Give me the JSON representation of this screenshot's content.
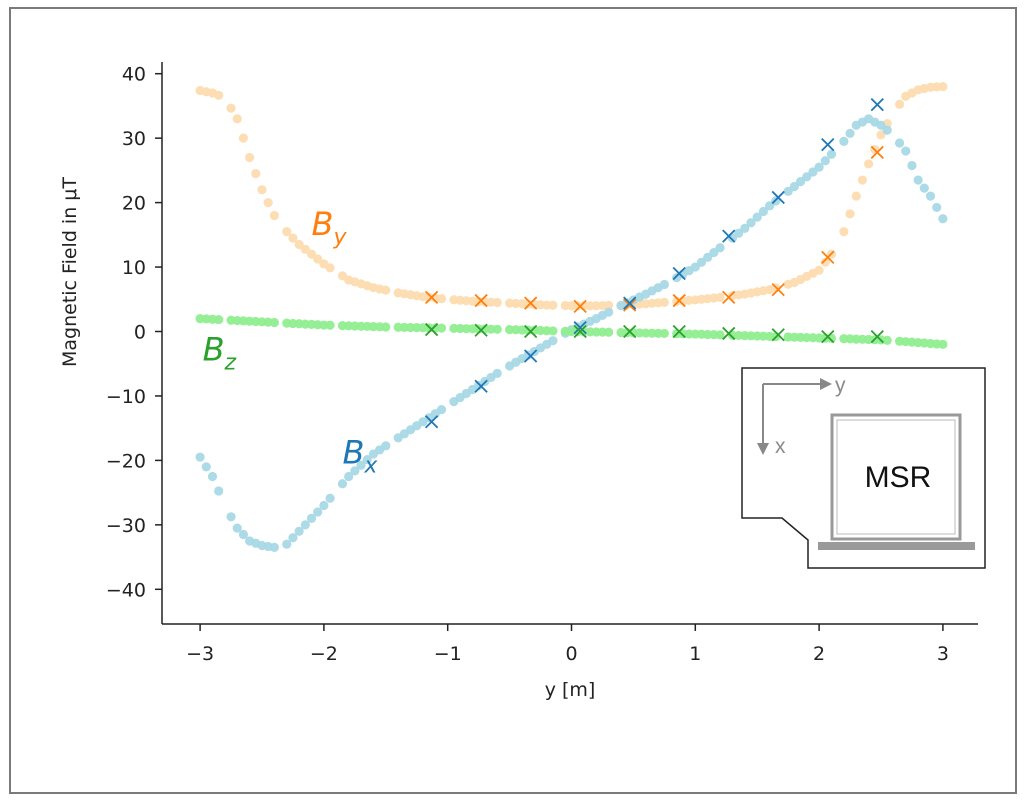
{
  "chart_data": {
    "type": "scatter",
    "title": "",
    "xlabel": "y [m]",
    "ylabel": "Magnetic Field in μT",
    "xlim": [
      -3.3,
      3.3
    ],
    "ylim": [
      -45,
      40
    ],
    "xticks": [
      -3,
      -2,
      -1,
      0,
      1,
      2,
      3
    ],
    "yticks": [
      40,
      30,
      20,
      10,
      0,
      -10,
      -20,
      -30,
      -40
    ],
    "xtick_labels": [
      "−3",
      "−2",
      "−1",
      "0",
      "1",
      "2",
      "3"
    ],
    "ytick_labels": [
      "40",
      "30",
      "20",
      "10",
      "0",
      "−10",
      "−20",
      "−30",
      "−40"
    ],
    "series": [
      {
        "name": "B_y",
        "label_main": "B",
        "label_sub": "y",
        "dot_color": "#fddcb0",
        "marker_color": "#ff7f0e",
        "curve": [
          [
            -3.0,
            37.4
          ],
          [
            -2.9,
            37.0
          ],
          [
            -2.8,
            36.3
          ],
          [
            -2.7,
            33.0
          ],
          [
            -2.6,
            27.0
          ],
          [
            -2.5,
            22.0
          ],
          [
            -2.4,
            18.0
          ],
          [
            -2.3,
            15.5
          ],
          [
            -2.2,
            13.5
          ],
          [
            -2.0,
            10.5
          ],
          [
            -1.8,
            8.0
          ],
          [
            -1.6,
            6.8
          ],
          [
            -1.4,
            6.0
          ],
          [
            -1.2,
            5.4
          ],
          [
            -1.0,
            5.0
          ],
          [
            -0.8,
            4.7
          ],
          [
            -0.6,
            4.5
          ],
          [
            -0.4,
            4.3
          ],
          [
            -0.2,
            4.1
          ],
          [
            0.0,
            4.0
          ],
          [
            0.2,
            4.0
          ],
          [
            0.4,
            4.1
          ],
          [
            0.6,
            4.3
          ],
          [
            0.8,
            4.6
          ],
          [
            1.0,
            4.9
          ],
          [
            1.2,
            5.3
          ],
          [
            1.4,
            5.8
          ],
          [
            1.6,
            6.5
          ],
          [
            1.8,
            7.6
          ],
          [
            2.0,
            9.5
          ],
          [
            2.1,
            12.0
          ],
          [
            2.2,
            15.5
          ],
          [
            2.3,
            21.0
          ],
          [
            2.4,
            26.0
          ],
          [
            2.5,
            30.5
          ],
          [
            2.6,
            34.0
          ],
          [
            2.7,
            36.5
          ],
          [
            2.8,
            37.5
          ],
          [
            2.9,
            37.9
          ],
          [
            3.0,
            38.0
          ]
        ],
        "markers": [
          [
            -1.13,
            5.3
          ],
          [
            -0.73,
            4.8
          ],
          [
            -0.33,
            4.4
          ],
          [
            0.07,
            3.9
          ],
          [
            0.47,
            4.1
          ],
          [
            0.87,
            4.8
          ],
          [
            1.27,
            5.3
          ],
          [
            1.67,
            6.5
          ],
          [
            2.07,
            11.5
          ],
          [
            2.47,
            27.8
          ]
        ],
        "label_pos": [
          -2.1,
          15.0
        ]
      },
      {
        "name": "B_x",
        "label_main": "B",
        "label_sub": "x",
        "dot_color": "#a8d8e6",
        "marker_color": "#1f77b4",
        "curve": [
          [
            -3.0,
            -19.5
          ],
          [
            -2.9,
            -22.5
          ],
          [
            -2.8,
            -27.0
          ],
          [
            -2.7,
            -30.5
          ],
          [
            -2.6,
            -32.5
          ],
          [
            -2.5,
            -33.2
          ],
          [
            -2.4,
            -33.5
          ],
          [
            -2.3,
            -33.0
          ],
          [
            -2.2,
            -31.0
          ],
          [
            -2.0,
            -27.0
          ],
          [
            -1.8,
            -22.5
          ],
          [
            -1.6,
            -19.0
          ],
          [
            -1.4,
            -16.5
          ],
          [
            -1.2,
            -14.0
          ],
          [
            -1.0,
            -11.5
          ],
          [
            -0.8,
            -9.0
          ],
          [
            -0.6,
            -6.5
          ],
          [
            -0.4,
            -4.2
          ],
          [
            -0.2,
            -2.0
          ],
          [
            0.0,
            0.3
          ],
          [
            0.2,
            2.0
          ],
          [
            0.4,
            4.0
          ],
          [
            0.6,
            5.8
          ],
          [
            0.8,
            7.8
          ],
          [
            1.0,
            10.0
          ],
          [
            1.2,
            13.0
          ],
          [
            1.4,
            16.0
          ],
          [
            1.6,
            19.5
          ],
          [
            1.8,
            22.5
          ],
          [
            2.0,
            25.5
          ],
          [
            2.2,
            29.5
          ],
          [
            2.3,
            32.0
          ],
          [
            2.4,
            33.0
          ],
          [
            2.5,
            32.0
          ],
          [
            2.6,
            30.5
          ],
          [
            2.7,
            28.0
          ],
          [
            2.8,
            23.5
          ],
          [
            2.9,
            21.0
          ],
          [
            3.0,
            17.5
          ]
        ],
        "markers": [
          [
            -1.13,
            -14.0
          ],
          [
            -0.73,
            -8.5
          ],
          [
            -0.33,
            -3.8
          ],
          [
            0.07,
            0.6
          ],
          [
            0.47,
            4.4
          ],
          [
            0.87,
            9.0
          ],
          [
            1.27,
            14.8
          ],
          [
            1.67,
            20.8
          ],
          [
            2.07,
            29.0
          ],
          [
            2.47,
            35.2
          ]
        ],
        "label_pos": [
          -1.85,
          -20.5
        ]
      },
      {
        "name": "B_z",
        "label_main": "B",
        "label_sub": "z",
        "dot_color": "#90ee90",
        "marker_color": "#2ca02c",
        "curve": [
          [
            -3.0,
            2.0
          ],
          [
            -2.5,
            1.5
          ],
          [
            -2.0,
            1.0
          ],
          [
            -1.5,
            0.7
          ],
          [
            -1.0,
            0.5
          ],
          [
            -0.5,
            0.3
          ],
          [
            0.0,
            0.0
          ],
          [
            0.5,
            -0.2
          ],
          [
            1.0,
            -0.4
          ],
          [
            1.5,
            -0.7
          ],
          [
            2.0,
            -1.0
          ],
          [
            2.5,
            -1.3
          ],
          [
            3.0,
            -2.0
          ]
        ],
        "markers": [
          [
            -1.13,
            0.3
          ],
          [
            -0.73,
            0.2
          ],
          [
            -0.33,
            0.0
          ],
          [
            0.07,
            0.0
          ],
          [
            0.47,
            0.0
          ],
          [
            0.87,
            0.0
          ],
          [
            1.27,
            -0.3
          ],
          [
            1.67,
            -0.5
          ],
          [
            2.07,
            -0.8
          ],
          [
            2.47,
            -0.8
          ]
        ],
        "label_pos": [
          -2.98,
          -4.5
        ]
      }
    ]
  },
  "inset": {
    "room_label": "MSR",
    "axis_y_label": "y",
    "axis_x_label": "x"
  }
}
